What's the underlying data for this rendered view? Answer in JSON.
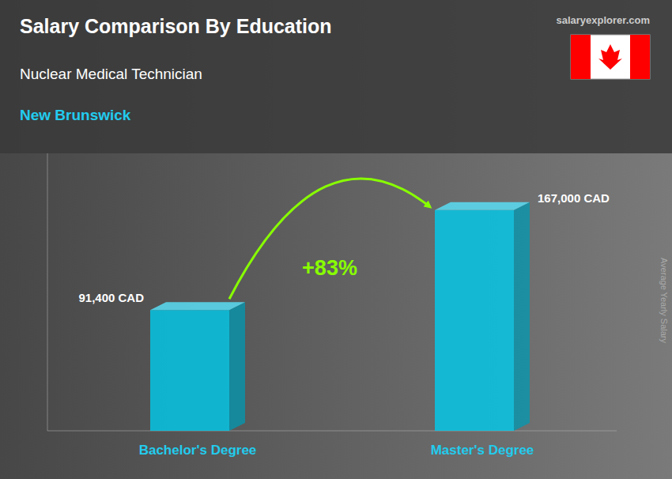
{
  "chart_data": {
    "type": "bar",
    "title": "Salary Comparison By Education",
    "subtitle": "Nuclear Medical Technician",
    "annotations": [
      "New Brunswick",
      "+83%",
      "salaryexplorer.com"
    ],
    "y_label": "Average Yearly Salary",
    "categories": [
      "Bachelor's Degree",
      "Master's Degree"
    ],
    "values": [
      91400,
      167000
    ],
    "value_labels": [
      "91,400 CAD",
      "167,000 CAD"
    ],
    "color": "#00CCEE",
    "ylim": [
      0,
      210000
    ],
    "data_labels": true,
    "tick_labels": false,
    "grid": false
  }
}
